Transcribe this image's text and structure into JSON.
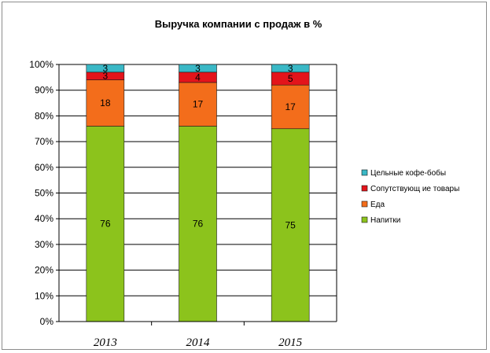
{
  "chart_data": {
    "type": "bar",
    "stacked": true,
    "title": "Выручка компании с продаж в %",
    "categories": [
      "2013",
      "2014",
      "2015"
    ],
    "series": [
      {
        "name": "Напитки",
        "values": [
          76,
          76,
          75
        ],
        "color": "#8cc31c"
      },
      {
        "name": "Еда",
        "values": [
          18,
          17,
          17
        ],
        "color": "#f36d1b"
      },
      {
        "name": "Сопутствующ ие товары",
        "values": [
          3,
          4,
          5
        ],
        "color": "#e3141b"
      },
      {
        "name": "Цельные кофе-бобы",
        "values": [
          3,
          3,
          3
        ],
        "color": "#3ab8c6"
      }
    ],
    "legend_order": [
      "Цельные кофе-бобы",
      "Сопутствующ ие товары",
      "Еда",
      "Напитки"
    ],
    "y_ticks": [
      "0%",
      "10%",
      "20%",
      "30%",
      "40%",
      "50%",
      "60%",
      "70%",
      "80%",
      "90%",
      "100%"
    ],
    "ylim": [
      0,
      100
    ],
    "grid": true,
    "legend_position": "right"
  }
}
